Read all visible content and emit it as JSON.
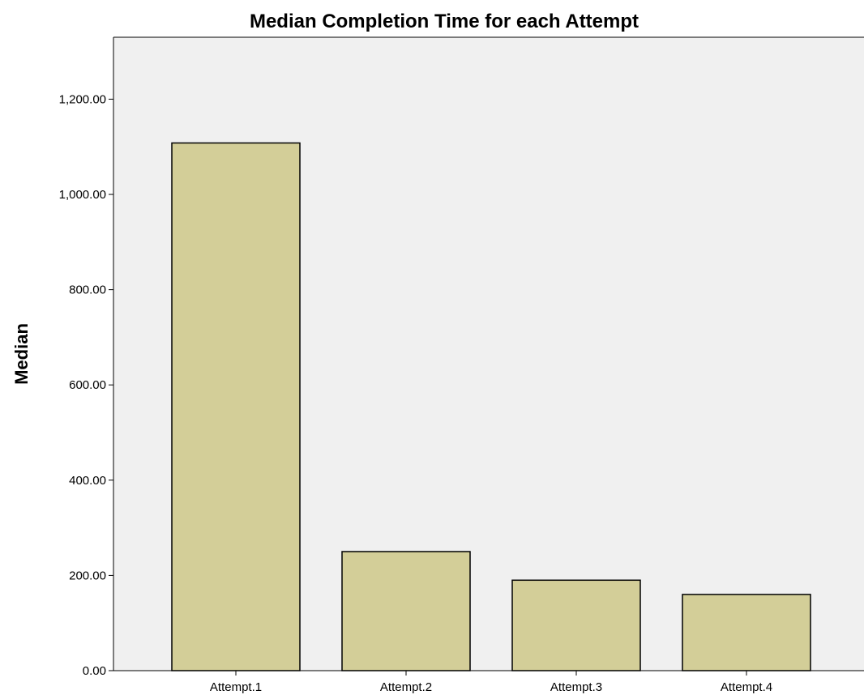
{
  "chart_data": {
    "type": "bar",
    "title": "Median Completion Time for each Attempt",
    "xlabel": "",
    "ylabel": "Median",
    "categories": [
      "Attempt.1",
      "Attempt.2",
      "Attempt.3",
      "Attempt.4"
    ],
    "values": [
      1108,
      250,
      190,
      160
    ],
    "ylim": [
      0,
      1330
    ],
    "yticks": [
      0,
      200,
      400,
      600,
      800,
      1000,
      1200
    ],
    "ytick_labels": [
      "0.00",
      "200.00",
      "400.00",
      "600.00",
      "800.00",
      "1,000.00",
      "1,200.00"
    ],
    "grid": false,
    "legend": "none",
    "colors": {
      "bar_fill": "#d3ce98",
      "bar_stroke": "#000000",
      "plot_background": "#f0f0f0"
    }
  }
}
